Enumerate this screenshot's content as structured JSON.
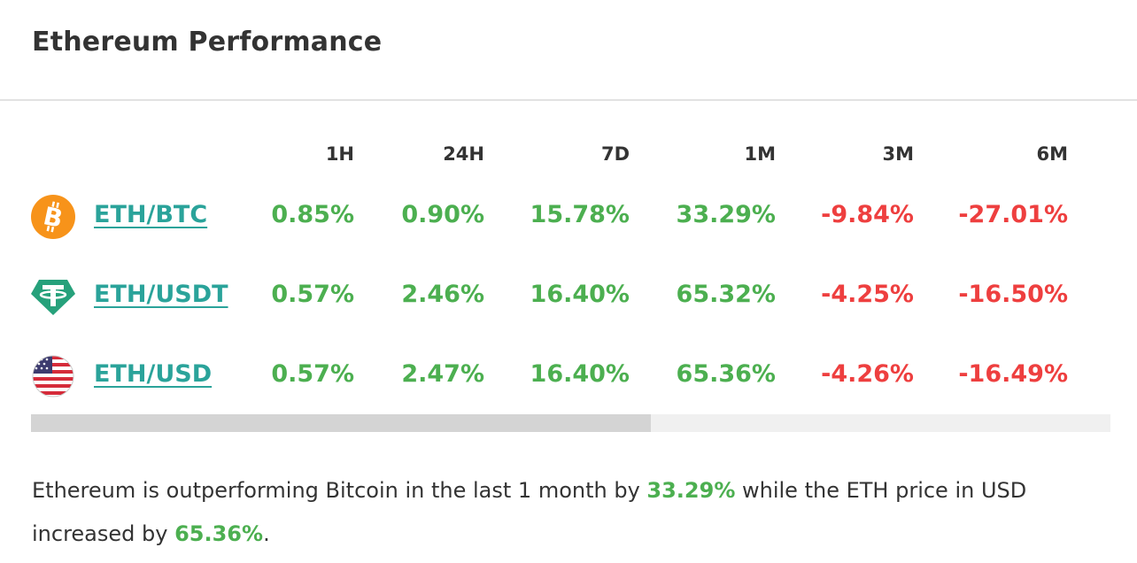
{
  "title": "Ethereum Performance",
  "columns": [
    "1H",
    "24H",
    "7D",
    "1M",
    "3M",
    "6M"
  ],
  "rows": [
    {
      "pair": "ETH/BTC",
      "icon": "bitcoin-icon",
      "values": [
        "0.85%",
        "0.90%",
        "15.78%",
        "33.29%",
        "-9.84%",
        "-27.01%"
      ]
    },
    {
      "pair": "ETH/USDT",
      "icon": "tether-icon",
      "values": [
        "0.57%",
        "2.46%",
        "16.40%",
        "65.32%",
        "-4.25%",
        "-16.50%"
      ]
    },
    {
      "pair": "ETH/USD",
      "icon": "us-flag-icon",
      "values": [
        "0.57%",
        "2.47%",
        "16.40%",
        "65.36%",
        "-4.26%",
        "-16.49%"
      ]
    }
  ],
  "summary": {
    "part1": "Ethereum is outperforming Bitcoin in the last 1 month by ",
    "highlight1": "33.29%",
    "part2": " while the ETH price in USD increased by ",
    "highlight2": "65.36%",
    "part3": "."
  },
  "colors": {
    "positive": "#4caf50",
    "negative": "#ee3f3f",
    "link": "#2aa39a",
    "bitcoin": "#f7931a",
    "tether": "#26a17b"
  },
  "scroll_position": 0.57
}
